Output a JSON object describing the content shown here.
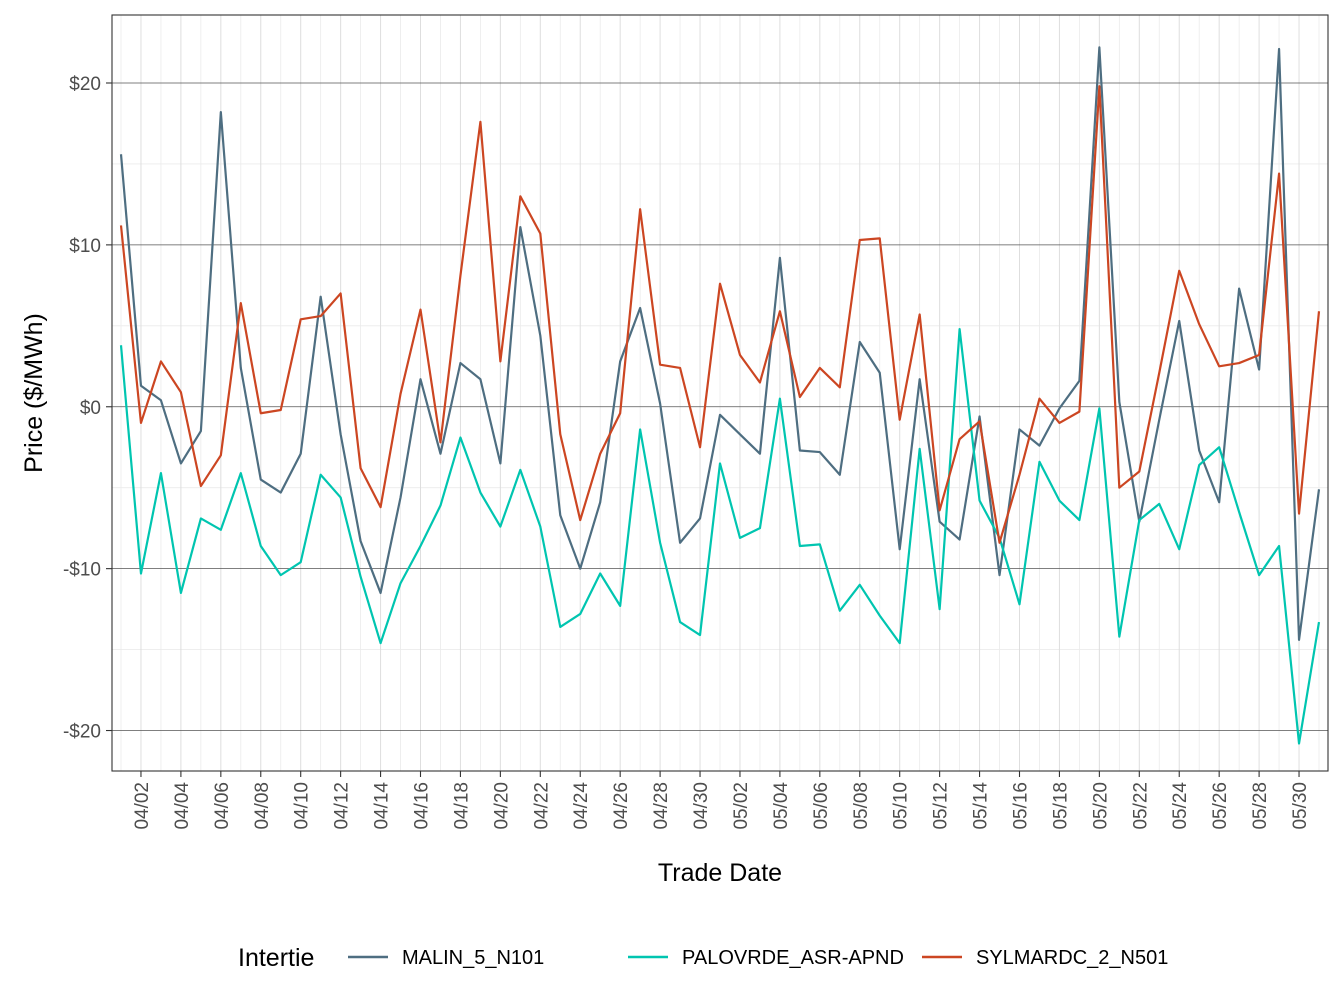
{
  "chart_data": {
    "type": "line",
    "xlabel": "Trade Date",
    "ylabel": "Price ($/MWh)",
    "ylim": [
      -22.5,
      24.2
    ],
    "yticks": [
      -20,
      -10,
      0,
      10,
      20
    ],
    "ytick_labels": [
      "-$20",
      "-$10",
      "$0",
      "$10",
      "$20"
    ],
    "xtick_labels": [
      "04/02",
      "04/04",
      "04/06",
      "04/08",
      "04/10",
      "04/12",
      "04/14",
      "04/16",
      "04/18",
      "04/20",
      "04/22",
      "04/24",
      "04/26",
      "04/28",
      "04/30",
      "05/02",
      "05/04",
      "05/06",
      "05/08",
      "05/10",
      "05/12",
      "05/14",
      "05/16",
      "05/18",
      "05/20",
      "05/22",
      "05/24",
      "05/26",
      "05/28",
      "05/30"
    ],
    "x": [
      "04/01",
      "04/02",
      "04/03",
      "04/04",
      "04/05",
      "04/06",
      "04/07",
      "04/08",
      "04/09",
      "04/10",
      "04/11",
      "04/12",
      "04/13",
      "04/14",
      "04/15",
      "04/16",
      "04/17",
      "04/18",
      "04/19",
      "04/20",
      "04/21",
      "04/22",
      "04/23",
      "04/24",
      "04/25",
      "04/26",
      "04/27",
      "04/28",
      "04/29",
      "04/30",
      "05/01",
      "05/02",
      "05/03",
      "05/04",
      "05/05",
      "05/06",
      "05/07",
      "05/08",
      "05/09",
      "05/10",
      "05/11",
      "05/12",
      "05/13",
      "05/14",
      "05/15",
      "05/16",
      "05/17",
      "05/18",
      "05/19",
      "05/20",
      "05/21",
      "05/22",
      "05/23",
      "05/24",
      "05/25",
      "05/26",
      "05/27",
      "05/28",
      "05/29",
      "05/30",
      "05/31"
    ],
    "grid": true,
    "legend": {
      "title": "Intertie",
      "position": "bottom"
    },
    "series": [
      {
        "name": "MALIN_5_N101",
        "color": "#4e6e81",
        "values": [
          15.6,
          1.3,
          0.4,
          -3.5,
          -1.5,
          18.2,
          2.4,
          -4.5,
          -5.3,
          -2.9,
          6.8,
          -1.7,
          -8.3,
          -11.5,
          -5.6,
          1.7,
          -2.9,
          2.7,
          1.7,
          -3.5,
          11.1,
          4.4,
          -6.7,
          -10.0,
          -5.9,
          2.8,
          6.1,
          0.2,
          -8.4,
          -6.9,
          -0.5,
          -1.7,
          -2.9,
          9.2,
          -2.7,
          -2.8,
          -4.2,
          4.0,
          2.1,
          -8.8,
          1.7,
          -7.1,
          -8.2,
          -0.6,
          -10.4,
          -1.4,
          -2.4,
          -0.1,
          1.6,
          22.2,
          0.3,
          -7.1,
          -0.8,
          5.3,
          -2.7,
          -5.9,
          7.3,
          2.3,
          22.1,
          -14.4,
          -5.1
        ]
      },
      {
        "name": "PALOVRDE_ASR-APND",
        "color": "#00c5b0",
        "values": [
          3.8,
          -10.3,
          -4.1,
          -11.5,
          -6.9,
          -7.6,
          -4.1,
          -8.6,
          -10.4,
          -9.6,
          -4.2,
          -5.6,
          -10.5,
          -14.6,
          -10.9,
          -8.6,
          -6.1,
          -1.9,
          -5.3,
          -7.4,
          -3.9,
          -7.4,
          -13.6,
          -12.8,
          -10.3,
          -12.3,
          -1.4,
          -8.4,
          -13.3,
          -14.1,
          -3.5,
          -8.1,
          -7.5,
          0.5,
          -8.6,
          -8.5,
          -12.6,
          -11.0,
          -12.9,
          -14.6,
          -2.6,
          -12.5,
          4.8,
          -5.8,
          -8.1,
          -12.2,
          -3.4,
          -5.8,
          -7.0,
          -0.1,
          -14.2,
          -7.0,
          -6.0,
          -8.8,
          -3.6,
          -2.5,
          -6.5,
          -10.4,
          -8.6,
          -20.8,
          -13.3
        ]
      },
      {
        "name": "SYLMARDC_2_N501",
        "color": "#cc4622",
        "values": [
          11.2,
          -1.0,
          2.8,
          0.9,
          -4.9,
          -3.0,
          6.4,
          -0.4,
          -0.2,
          5.4,
          5.6,
          7.0,
          -3.8,
          -6.2,
          0.8,
          6.0,
          -2.2,
          8.1,
          17.6,
          2.8,
          13.0,
          10.7,
          -1.7,
          -7.0,
          -2.9,
          -0.4,
          12.2,
          2.6,
          2.4,
          -2.5,
          7.6,
          3.2,
          1.5,
          5.9,
          0.6,
          2.4,
          1.2,
          10.3,
          10.4,
          -0.8,
          5.7,
          -6.4,
          -2.0,
          -0.9,
          -8.4,
          -4.2,
          0.5,
          -1.0,
          -0.3,
          19.8,
          -5.0,
          -4.0,
          2.1,
          8.4,
          5.1,
          2.5,
          2.7,
          3.2,
          14.4,
          -6.6,
          5.9
        ]
      }
    ]
  }
}
